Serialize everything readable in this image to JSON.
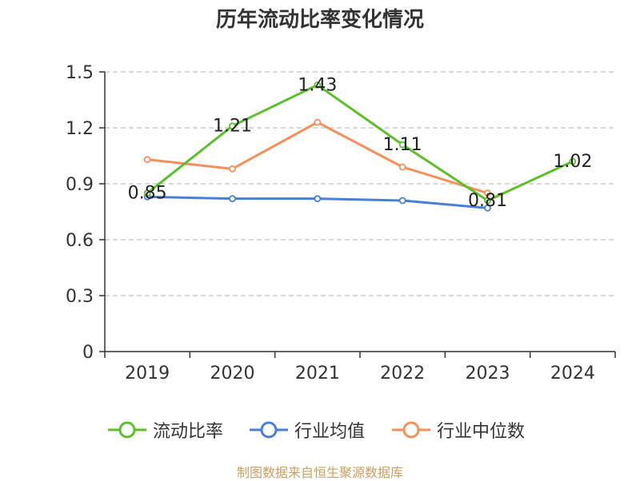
{
  "chart_data": {
    "type": "line",
    "title": "历年流动比率变化情况",
    "categories": [
      "2019",
      "2020",
      "2021",
      "2022",
      "2023",
      "2024"
    ],
    "ylim": [
      0,
      1.5
    ],
    "yticks": [
      "0",
      "0.3",
      "0.6",
      "0.9",
      "1.2",
      "1.5"
    ],
    "ytick_values": [
      0,
      0.3,
      0.6,
      0.9,
      1.2,
      1.5
    ],
    "grid": true,
    "legend_position": "bottom",
    "series": [
      {
        "name": "流动比率",
        "color": "#5cc02a",
        "values": [
          0.85,
          1.21,
          1.43,
          1.11,
          0.81,
          1.02
        ],
        "labels": [
          "0.85",
          "1.21",
          "1.43",
          "1.11",
          "0.81",
          "1.02"
        ]
      },
      {
        "name": "行业均值",
        "color": "#4a7fd9",
        "values": [
          0.83,
          0.82,
          0.82,
          0.81,
          0.77,
          null
        ]
      },
      {
        "name": "行业中位数",
        "color": "#f4915a",
        "values": [
          1.03,
          0.98,
          1.23,
          0.99,
          0.85,
          null
        ]
      }
    ],
    "source": "制图数据来自恒生聚源数据库"
  }
}
